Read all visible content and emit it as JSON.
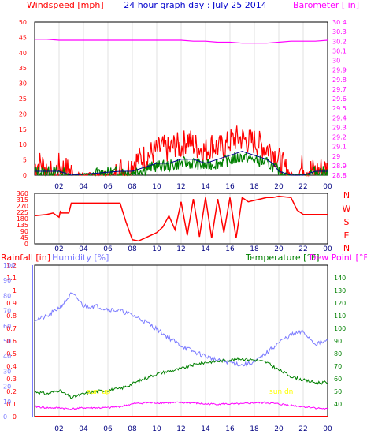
{
  "header": {
    "left_label": "Windspeed [mph]",
    "title": "24 hour graph day : July 25 2014",
    "right_label": "Barometer [ in]"
  },
  "colors": {
    "background": "#ffffff",
    "wind_gust": "#ff0000",
    "wind_avg": "#008000",
    "wind_dir_line": "#00008b",
    "barometer": "#ff00ff",
    "rainfall": "#ff0000",
    "humidity": "#7b7bff",
    "temperature": "#008000",
    "dew_point": "#ff00ff",
    "sun_label": "#ffff00",
    "title": "#0000cc"
  },
  "chart_data": [
    {
      "type": "line",
      "id": "wind-baro",
      "left_axis": {
        "label": "Windspeed [mph]",
        "range": [
          0,
          50
        ],
        "ticks": [
          "0",
          "5",
          "10",
          "15",
          "20",
          "25",
          "30",
          "35",
          "40",
          "45",
          "50"
        ]
      },
      "right_axis": {
        "label": "Barometer [ in]",
        "range": [
          28.8,
          30.4
        ],
        "ticks": [
          "28.8",
          "28.9",
          "29",
          "29.1",
          "29.2",
          "29.3",
          "29.4",
          "29.5",
          "29.6",
          "29.7",
          "29.8",
          "29.9",
          "30",
          "30.1",
          "30.2",
          "30.3",
          "30.4"
        ]
      },
      "x_ticks": [
        "02",
        "04",
        "06",
        "08",
        "10",
        "12",
        "14",
        "16",
        "18",
        "20",
        "22",
        "00"
      ],
      "series": [
        {
          "name": "Windspeed [mph]",
          "kind": "gust",
          "x": [
            0,
            0.5,
            1,
            1.5,
            2,
            2.5,
            3,
            3.5,
            4,
            4.5,
            5,
            5.5,
            6,
            6.5,
            7,
            7.5,
            8,
            8.5,
            9,
            9.5,
            10,
            10.5,
            11,
            11.5,
            12,
            12.5,
            13,
            13.5,
            14,
            14.5,
            15,
            15.5,
            16,
            16.5,
            17,
            17.5,
            18,
            18.5,
            19,
            19.5,
            20,
            20.5,
            21,
            21.5,
            22,
            22.5,
            23,
            23.5,
            24
          ],
          "y": [
            3,
            4,
            2,
            0,
            3,
            2,
            1,
            0,
            0,
            0,
            0,
            0,
            0,
            0,
            2,
            1,
            4,
            5,
            6,
            7,
            8,
            9,
            8,
            10,
            9,
            12,
            10,
            9,
            8,
            10,
            9,
            9,
            11,
            12,
            12,
            11,
            11,
            10,
            9,
            8,
            5,
            2,
            0,
            0,
            3,
            2,
            1,
            2,
            2
          ]
        },
        {
          "name": "",
          "kind": "average",
          "x": [
            0,
            1,
            2,
            3,
            7,
            8,
            9,
            10,
            11,
            12,
            13,
            14,
            15,
            16,
            17,
            18,
            19,
            19.5,
            20,
            21,
            22,
            23,
            24
          ],
          "y": [
            1,
            1,
            1,
            0,
            1,
            1,
            2,
            3,
            3,
            4,
            4,
            3,
            4,
            5,
            6,
            5,
            4,
            3,
            1,
            0,
            0,
            1,
            1
          ]
        },
        {
          "name": "Barometer [ in]",
          "x": [
            0,
            1,
            2,
            3,
            4,
            5,
            6,
            7,
            8,
            9,
            10,
            11,
            12,
            13,
            14,
            15,
            16,
            17,
            18,
            19,
            20,
            21,
            22,
            23,
            24
          ],
          "y": [
            30.22,
            30.22,
            30.21,
            30.21,
            30.21,
            30.21,
            30.21,
            30.21,
            30.21,
            30.21,
            30.21,
            30.21,
            30.21,
            30.2,
            30.2,
            30.19,
            30.19,
            30.18,
            30.18,
            30.18,
            30.19,
            30.2,
            30.2,
            30.2,
            30.21
          ]
        }
      ]
    },
    {
      "type": "line",
      "id": "wind-direction",
      "left_axis": {
        "range": [
          0,
          360
        ],
        "ticks": [
          "0",
          "45",
          "90",
          "135",
          "180",
          "225",
          "270",
          "315",
          "360"
        ]
      },
      "right_axis_labels": [
        "N",
        "W",
        "S",
        "E",
        "N"
      ],
      "x_ticks": [
        "02",
        "04",
        "06",
        "08",
        "10",
        "12",
        "14",
        "16",
        "18",
        "20",
        "22",
        "00"
      ],
      "series": [
        {
          "name": "",
          "x": [
            0,
            1,
            1.5,
            2,
            2.1,
            2.2,
            2.8,
            3,
            5,
            6,
            7,
            7.5,
            8,
            8.5,
            9,
            9.5,
            10,
            10.5,
            11,
            11.5,
            12,
            12.5,
            13,
            13.5,
            14,
            14.5,
            15,
            15.5,
            16,
            16.5,
            17,
            17.5,
            18,
            18.5,
            19,
            19.5,
            20,
            21,
            21.5,
            22,
            23,
            24
          ],
          "y": [
            200,
            210,
            220,
            190,
            230,
            220,
            220,
            290,
            290,
            290,
            290,
            150,
            30,
            20,
            40,
            60,
            80,
            120,
            200,
            100,
            300,
            60,
            320,
            50,
            330,
            40,
            320,
            80,
            330,
            40,
            330,
            300,
            310,
            320,
            330,
            330,
            340,
            330,
            240,
            210,
            210,
            210
          ]
        }
      ]
    },
    {
      "type": "line",
      "id": "rain-humidity-temp",
      "axes": [
        {
          "label": "Rainfall [in]",
          "range": [
            0,
            1.2
          ],
          "ticks": [
            "0",
            "0.1",
            "0.2",
            "0.3",
            "0.4",
            "0.5",
            "0.6",
            "0.7",
            "0.8",
            "0.9",
            "1",
            "1.1",
            "1.2"
          ]
        },
        {
          "label": "Humidity [%]",
          "range": [
            0,
            100
          ],
          "ticks": [
            "0",
            "10",
            "20",
            "30",
            "40",
            "50",
            "60",
            "70",
            "80",
            "90",
            "100"
          ]
        },
        {
          "label": "Temperature [°F]",
          "range": [
            30,
            150
          ],
          "ticks": [
            "40",
            "50",
            "60",
            "70",
            "80",
            "90",
            "100",
            "110",
            "120",
            "130",
            "140"
          ]
        },
        {
          "label": "Dew Point [°F]"
        }
      ],
      "x_ticks": [
        "02",
        "04",
        "06",
        "08",
        "10",
        "12",
        "14",
        "16",
        "18",
        "20",
        "22",
        "00"
      ],
      "annotations": [
        "sun up",
        "sun dn"
      ],
      "series": [
        {
          "name": "Rainfall [in]",
          "x": [
            0,
            24
          ],
          "y": [
            0,
            0
          ]
        },
        {
          "name": "Humidity [%]",
          "x": [
            0,
            1,
            2,
            2.5,
            3,
            3.5,
            4,
            5,
            6,
            7,
            8,
            9,
            10,
            11,
            12,
            13,
            14,
            15,
            16,
            17,
            18,
            19,
            20,
            21,
            22,
            23,
            24
          ],
          "y": [
            64,
            66,
            72,
            76,
            81,
            78,
            73,
            73,
            71,
            70,
            67,
            63,
            58,
            52,
            47,
            43,
            40,
            37,
            36,
            34,
            36,
            42,
            49,
            54,
            56,
            48,
            50
          ]
        },
        {
          "name": "Temperature [°F]",
          "x": [
            0,
            1,
            2,
            3,
            4,
            5,
            6,
            7,
            8,
            9,
            10,
            11,
            12,
            13,
            14,
            15,
            16,
            17,
            18,
            19,
            20,
            21,
            22,
            23,
            24
          ],
          "y": [
            50,
            48,
            51,
            45,
            48,
            50,
            51,
            52,
            56,
            60,
            64,
            66,
            68,
            71,
            73,
            74,
            75,
            76,
            75,
            73,
            67,
            62,
            59,
            57,
            57
          ]
        },
        {
          "name": "Dew Point [°F]",
          "x": [
            0,
            1,
            2,
            3,
            4,
            5,
            6,
            7,
            8,
            9,
            10,
            11,
            12,
            13,
            14,
            15,
            16,
            17,
            18,
            19,
            20,
            21,
            22,
            23,
            24
          ],
          "y": [
            38,
            37,
            37,
            36,
            37,
            37,
            37,
            38,
            40,
            41,
            41,
            41,
            41,
            41,
            40,
            40,
            40,
            40,
            41,
            41,
            40,
            39,
            38,
            37,
            36
          ]
        }
      ]
    }
  ]
}
